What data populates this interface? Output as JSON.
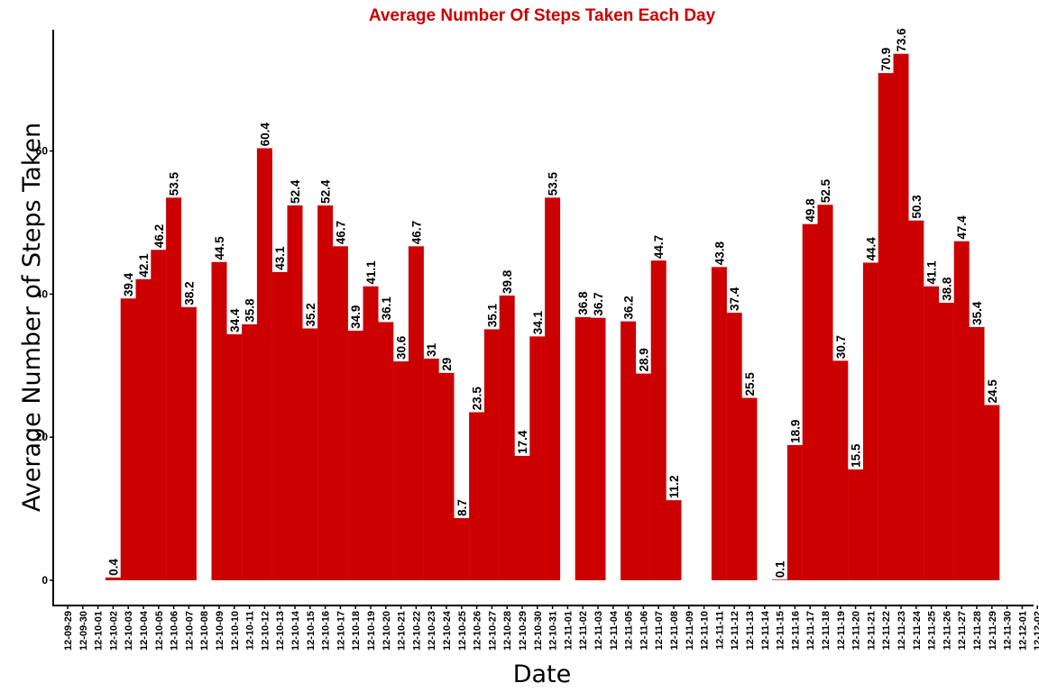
{
  "colors": {
    "bar": "#cc0000",
    "title": "#cc0000",
    "axis": "#000000",
    "label_bg": "#ffffff"
  },
  "chart_data": {
    "type": "bar",
    "title": "Average  Number Of Steps Taken Each Day",
    "xlabel": "Date",
    "ylabel": "Average  Number of Steps Taken",
    "ylim": [
      0,
      75
    ],
    "yticks": [
      0,
      20,
      40,
      60
    ],
    "grid": false,
    "legend": "none",
    "categories": [
      "12-09-29",
      "12-09-30",
      "12-10-01",
      "12-10-02",
      "12-10-03",
      "12-10-04",
      "12-10-05",
      "12-10-06",
      "12-10-07",
      "12-10-08",
      "12-10-09",
      "12-10-10",
      "12-10-11",
      "12-10-12",
      "12-10-13",
      "12-10-14",
      "12-10-15",
      "12-10-16",
      "12-10-17",
      "12-10-18",
      "12-10-19",
      "12-10-20",
      "12-10-21",
      "12-10-22",
      "12-10-23",
      "12-10-24",
      "12-10-25",
      "12-10-26",
      "12-10-27",
      "12-10-28",
      "12-10-29",
      "12-10-30",
      "12-10-31",
      "12-11-01",
      "12-11-02",
      "12-11-03",
      "12-11-04",
      "12-11-05",
      "12-11-06",
      "12-11-07",
      "12-11-08",
      "12-11-09",
      "12-11-10",
      "12-11-11",
      "12-11-12",
      "12-11-13",
      "12-11-14",
      "12-11-15",
      "12-11-16",
      "12-11-17",
      "12-11-18",
      "12-11-19",
      "12-11-20",
      "12-11-21",
      "12-11-22",
      "12-11-23",
      "12-11-24",
      "12-11-25",
      "12-11-26",
      "12-11-27",
      "12-11-28",
      "12-11-29",
      "12-11-30",
      "12-12-01",
      "12-12-02"
    ],
    "values": [
      null,
      null,
      null,
      0.4,
      39.4,
      42.1,
      46.2,
      53.5,
      38.2,
      null,
      44.5,
      34.4,
      35.8,
      60.4,
      43.1,
      52.4,
      35.2,
      52.4,
      46.7,
      34.9,
      41.1,
      36.1,
      30.6,
      46.7,
      31,
      29,
      8.7,
      23.5,
      35.1,
      39.8,
      17.4,
      34.1,
      53.5,
      null,
      36.8,
      36.7,
      null,
      36.2,
      28.9,
      44.7,
      11.2,
      null,
      null,
      43.8,
      37.4,
      25.5,
      null,
      0.1,
      18.9,
      49.8,
      52.5,
      30.7,
      15.5,
      44.4,
      70.9,
      73.6,
      50.3,
      41.1,
      38.8,
      47.4,
      35.4,
      24.5,
      null,
      null,
      null
    ]
  }
}
